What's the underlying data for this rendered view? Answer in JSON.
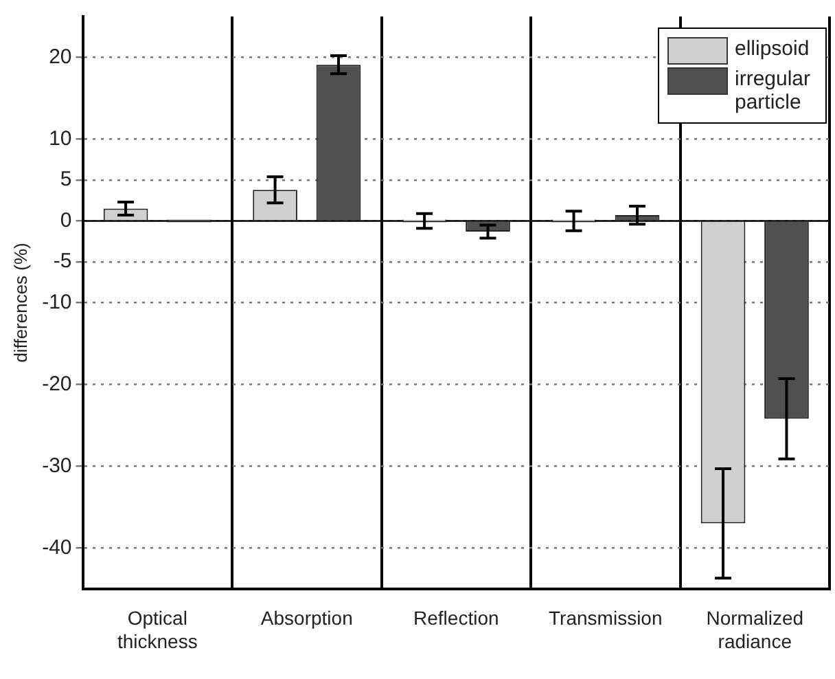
{
  "chart_data": {
    "type": "bar",
    "ylabel": "differences (%)",
    "categories": [
      "Optical thickness",
      "Absorption",
      "Reflection",
      "Transmission",
      "Normalized radiance"
    ],
    "series": [
      {
        "name": "ellipsoid",
        "color": "#d0d0d0",
        "values": [
          1.5,
          3.8,
          0,
          0,
          -37
        ],
        "errors": [
          0.8,
          1.6,
          0.9,
          1.2,
          6.7
        ]
      },
      {
        "name": "irregular particle",
        "color": "#505050",
        "values": [
          0,
          19.1,
          -1.3,
          0.7,
          -24.2
        ],
        "errors": [
          null,
          1.1,
          0.8,
          1.1,
          4.9
        ]
      }
    ],
    "ylim": [
      -45,
      25
    ],
    "yticks": [
      20,
      10,
      5,
      0,
      -5,
      -10,
      -20,
      -30,
      -40
    ],
    "grid": true,
    "legend": "top right"
  }
}
